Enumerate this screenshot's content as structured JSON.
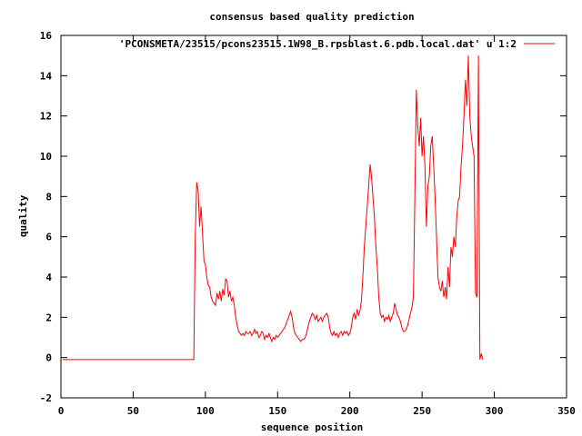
{
  "chart_data": {
    "type": "line",
    "title": "consensus based quality prediction",
    "xlabel": "sequence position",
    "ylabel": "quality",
    "xlim": [
      0,
      350
    ],
    "ylim": [
      -2,
      16
    ],
    "xticks": [
      0,
      50,
      100,
      150,
      200,
      250,
      300,
      350
    ],
    "yticks": [
      -2,
      0,
      2,
      4,
      6,
      8,
      10,
      12,
      14,
      16
    ],
    "grid": false,
    "legend_position": "top-right",
    "series": [
      {
        "name": "'PCONSMETA/23515/pcons23515.1W98_B.rpsblast.6.pdb.local.dat' u 1:2",
        "color": "#ff0000",
        "points": [
          [
            1,
            -0.1
          ],
          [
            92,
            -0.1
          ],
          [
            93,
            6.0
          ],
          [
            94,
            8.7
          ],
          [
            95,
            8.3
          ],
          [
            96,
            6.5
          ],
          [
            97,
            7.5
          ],
          [
            98,
            6.2
          ],
          [
            99,
            4.8
          ],
          [
            100,
            4.6
          ],
          [
            101,
            4.0
          ],
          [
            102,
            3.6
          ],
          [
            103,
            3.5
          ],
          [
            104,
            3.0
          ],
          [
            105,
            2.8
          ],
          [
            106,
            2.7
          ],
          [
            107,
            2.6
          ],
          [
            108,
            3.2
          ],
          [
            109,
            2.9
          ],
          [
            110,
            3.3
          ],
          [
            111,
            2.8
          ],
          [
            112,
            3.4
          ],
          [
            113,
            3.1
          ],
          [
            114,
            3.9
          ],
          [
            115,
            3.8
          ],
          [
            116,
            3.0
          ],
          [
            117,
            3.3
          ],
          [
            118,
            2.8
          ],
          [
            119,
            3.0
          ],
          [
            120,
            2.6
          ],
          [
            121,
            2.0
          ],
          [
            122,
            1.6
          ],
          [
            123,
            1.3
          ],
          [
            124,
            1.2
          ],
          [
            125,
            1.1
          ],
          [
            126,
            1.2
          ],
          [
            127,
            1.1
          ],
          [
            128,
            1.3
          ],
          [
            129,
            1.2
          ],
          [
            130,
            1.2
          ],
          [
            131,
            1.3
          ],
          [
            132,
            1.1
          ],
          [
            133,
            1.2
          ],
          [
            134,
            1.4
          ],
          [
            135,
            1.2
          ],
          [
            136,
            1.3
          ],
          [
            137,
            1.0
          ],
          [
            138,
            1.1
          ],
          [
            139,
            1.3
          ],
          [
            140,
            1.2
          ],
          [
            141,
            0.9
          ],
          [
            142,
            1.1
          ],
          [
            143,
            1.0
          ],
          [
            144,
            1.2
          ],
          [
            145,
            1.0
          ],
          [
            146,
            0.8
          ],
          [
            147,
            1.0
          ],
          [
            148,
            0.9
          ],
          [
            149,
            1.1
          ],
          [
            150,
            1.0
          ],
          [
            151,
            1.1
          ],
          [
            152,
            1.2
          ],
          [
            153,
            1.3
          ],
          [
            154,
            1.4
          ],
          [
            155,
            1.5
          ],
          [
            156,
            1.7
          ],
          [
            157,
            1.9
          ],
          [
            158,
            2.1
          ],
          [
            159,
            2.3
          ],
          [
            160,
            2.0
          ],
          [
            161,
            1.5
          ],
          [
            162,
            1.2
          ],
          [
            163,
            1.1
          ],
          [
            164,
            1.0
          ],
          [
            165,
            0.9
          ],
          [
            166,
            0.8
          ],
          [
            167,
            0.9
          ],
          [
            168,
            0.9
          ],
          [
            169,
            1.0
          ],
          [
            170,
            1.2
          ],
          [
            171,
            1.5
          ],
          [
            172,
            1.8
          ],
          [
            173,
            2.0
          ],
          [
            174,
            2.2
          ],
          [
            175,
            2.1
          ],
          [
            176,
            1.9
          ],
          [
            177,
            2.1
          ],
          [
            178,
            1.8
          ],
          [
            179,
            1.9
          ],
          [
            180,
            2.0
          ],
          [
            181,
            1.8
          ],
          [
            182,
            2.0
          ],
          [
            183,
            2.1
          ],
          [
            184,
            2.2
          ],
          [
            185,
            2.0
          ],
          [
            186,
            1.5
          ],
          [
            187,
            1.2
          ],
          [
            188,
            1.1
          ],
          [
            189,
            1.3
          ],
          [
            190,
            1.1
          ],
          [
            191,
            1.2
          ],
          [
            192,
            1.0
          ],
          [
            193,
            1.2
          ],
          [
            194,
            1.3
          ],
          [
            195,
            1.1
          ],
          [
            196,
            1.3
          ],
          [
            197,
            1.2
          ],
          [
            198,
            1.3
          ],
          [
            199,
            1.1
          ],
          [
            200,
            1.2
          ],
          [
            201,
            1.5
          ],
          [
            202,
            2.0
          ],
          [
            203,
            2.2
          ],
          [
            204,
            1.9
          ],
          [
            205,
            2.4
          ],
          [
            206,
            2.1
          ],
          [
            207,
            2.3
          ],
          [
            208,
            2.8
          ],
          [
            209,
            4.0
          ],
          [
            210,
            5.5
          ],
          [
            211,
            6.5
          ],
          [
            212,
            7.5
          ],
          [
            213,
            8.5
          ],
          [
            214,
            9.6
          ],
          [
            215,
            9.0
          ],
          [
            216,
            8.0
          ],
          [
            217,
            7.0
          ],
          [
            218,
            5.5
          ],
          [
            219,
            4.5
          ],
          [
            220,
            3.0
          ],
          [
            221,
            2.2
          ],
          [
            222,
            2.0
          ],
          [
            223,
            2.1
          ],
          [
            224,
            1.8
          ],
          [
            225,
            2.0
          ],
          [
            226,
            1.9
          ],
          [
            227,
            2.1
          ],
          [
            228,
            1.8
          ],
          [
            229,
            2.0
          ],
          [
            230,
            2.2
          ],
          [
            231,
            2.7
          ],
          [
            232,
            2.4
          ],
          [
            233,
            2.1
          ],
          [
            234,
            2.0
          ],
          [
            235,
            1.8
          ],
          [
            236,
            1.5
          ],
          [
            237,
            1.3
          ],
          [
            238,
            1.3
          ],
          [
            239,
            1.4
          ],
          [
            240,
            1.6
          ],
          [
            241,
            1.9
          ],
          [
            242,
            2.2
          ],
          [
            243,
            2.5
          ],
          [
            244,
            3.0
          ],
          [
            245,
            8.0
          ],
          [
            246,
            13.3
          ],
          [
            247,
            11.5
          ],
          [
            248,
            10.5
          ],
          [
            249,
            11.9
          ],
          [
            250,
            10.0
          ],
          [
            251,
            11.0
          ],
          [
            252,
            9.5
          ],
          [
            253,
            6.5
          ],
          [
            254,
            8.5
          ],
          [
            255,
            9.0
          ],
          [
            256,
            10.5
          ],
          [
            257,
            11.0
          ],
          [
            258,
            9.5
          ],
          [
            259,
            8.0
          ],
          [
            260,
            6.0
          ],
          [
            261,
            4.0
          ],
          [
            262,
            3.5
          ],
          [
            263,
            3.3
          ],
          [
            264,
            3.8
          ],
          [
            265,
            3.0
          ],
          [
            266,
            3.5
          ],
          [
            267,
            2.9
          ],
          [
            268,
            4.5
          ],
          [
            269,
            3.5
          ],
          [
            270,
            5.5
          ],
          [
            271,
            5.0
          ],
          [
            272,
            6.0
          ],
          [
            273,
            5.5
          ],
          [
            274,
            7.0
          ],
          [
            275,
            7.8
          ],
          [
            276,
            8.0
          ],
          [
            277,
            9.5
          ],
          [
            278,
            10.5
          ],
          [
            279,
            12.0
          ],
          [
            280,
            13.8
          ],
          [
            281,
            12.5
          ],
          [
            282,
            15.0
          ],
          [
            283,
            12.0
          ],
          [
            284,
            11.0
          ],
          [
            285,
            10.5
          ],
          [
            286,
            10.0
          ],
          [
            287,
            3.2
          ],
          [
            288,
            3.0
          ],
          [
            289,
            15.0
          ],
          [
            290,
            -0.1
          ],
          [
            291,
            0.2
          ],
          [
            292,
            -0.1
          ]
        ]
      }
    ]
  }
}
